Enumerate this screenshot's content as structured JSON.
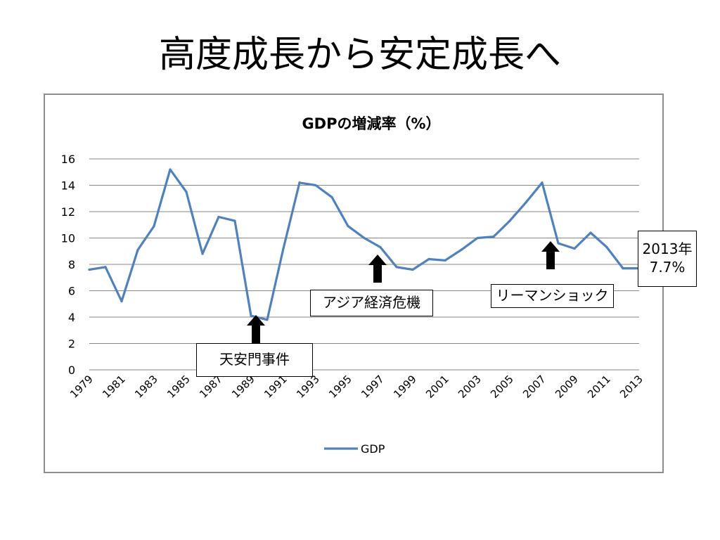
{
  "slide": {
    "title": "高度成長から安定成長へ"
  },
  "chart_data": {
    "type": "line",
    "title": "GDPの増減率（%）",
    "xlabel": "",
    "ylabel": "",
    "ylim": [
      0,
      16
    ],
    "yticks": [
      0,
      2,
      4,
      6,
      8,
      10,
      12,
      14,
      16
    ],
    "xtick_labels": [
      "1979",
      "1981",
      "1983",
      "1985",
      "1987",
      "1989",
      "1991",
      "1993",
      "1995",
      "1997",
      "1999",
      "2001",
      "2003",
      "2005",
      "2007",
      "2009",
      "2011",
      "2013"
    ],
    "grid": true,
    "legend_position": "bottom",
    "series": [
      {
        "name": "GDP",
        "color": "#4f81bd",
        "x": [
          1979,
          1980,
          1981,
          1982,
          1983,
          1984,
          1985,
          1986,
          1987,
          1988,
          1989,
          1990,
          1991,
          1992,
          1993,
          1994,
          1995,
          1996,
          1997,
          1998,
          1999,
          2000,
          2001,
          2002,
          2003,
          2004,
          2005,
          2006,
          2007,
          2008,
          2009,
          2010,
          2011,
          2012,
          2013
        ],
        "values": [
          7.6,
          7.8,
          5.2,
          9.1,
          10.9,
          15.2,
          13.5,
          8.8,
          11.6,
          11.3,
          4.1,
          3.8,
          9.2,
          14.2,
          14.0,
          13.1,
          10.9,
          10.0,
          9.3,
          7.8,
          7.6,
          8.4,
          8.3,
          9.1,
          10.0,
          10.1,
          11.3,
          12.7,
          14.2,
          9.6,
          9.2,
          10.4,
          9.3,
          7.7,
          7.7
        ]
      }
    ]
  },
  "annotations": [
    {
      "label": "天安門事件",
      "year": 1989
    },
    {
      "label": "アジア経済危機",
      "year": 1997
    },
    {
      "label": "リーマンショック",
      "year": 2008
    },
    {
      "label_line1": "2013年",
      "label_line2": "7.7%"
    }
  ]
}
